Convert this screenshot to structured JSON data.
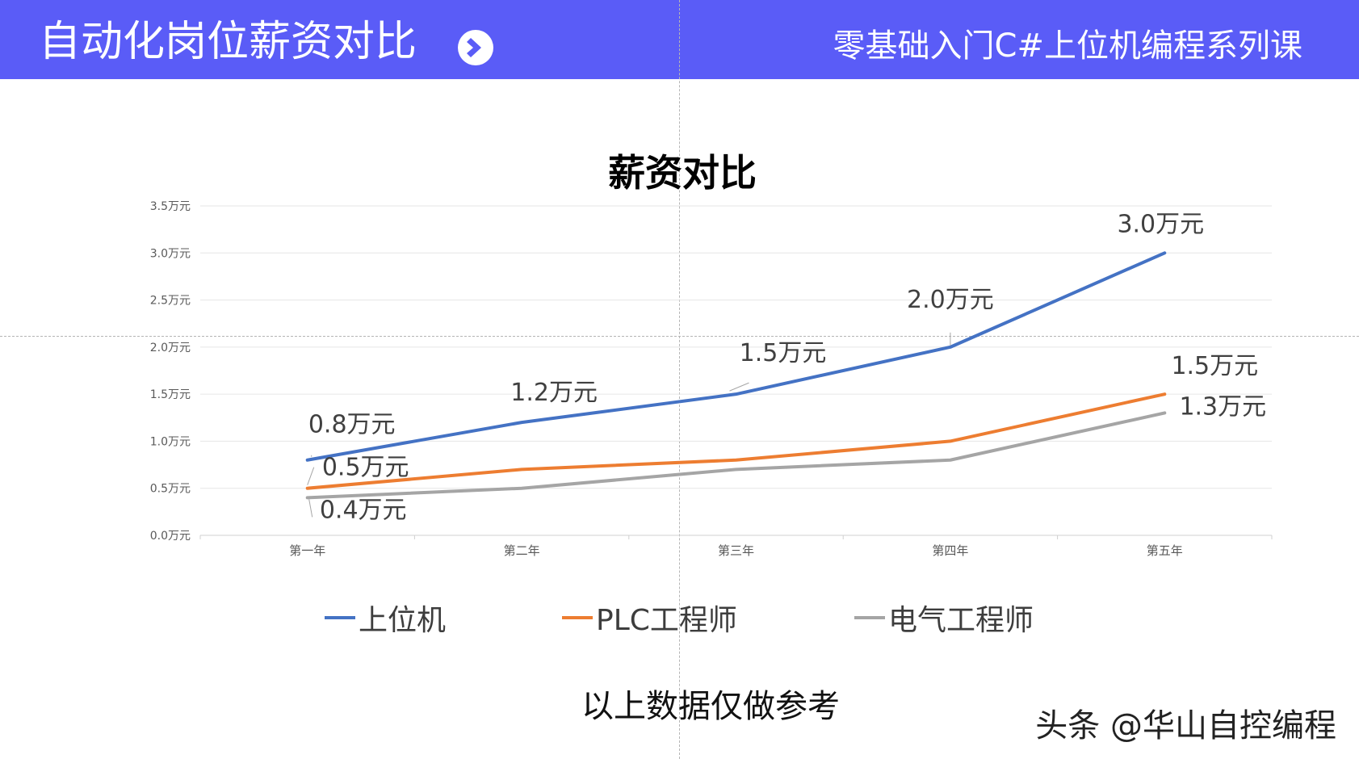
{
  "header": {
    "title": "自动化岗位薪资对比",
    "subtitle": "零基础入门C#上位机编程系列课",
    "arrow_icon": "chevron-right-circle-icon",
    "background_color": "#5a5cf7"
  },
  "chart_data": {
    "type": "line",
    "title": "薪资对比",
    "categories": [
      "第一年",
      "第二年",
      "第三年",
      "第四年",
      "第五年"
    ],
    "ylim": [
      0,
      3.5
    ],
    "yticks": [
      0.0,
      0.5,
      1.0,
      1.5,
      2.0,
      2.5,
      3.0,
      3.5
    ],
    "ytick_labels": [
      "0.0万元",
      "0.5万元",
      "1.0万元",
      "1.5万元",
      "2.0万元",
      "2.5万元",
      "3.0万元",
      "3.5万元"
    ],
    "grid": true,
    "legend_position": "bottom",
    "series": [
      {
        "name": "上位机",
        "color": "#4472c4",
        "values": [
          0.8,
          1.2,
          1.5,
          2.0,
          3.0
        ],
        "data_labels": [
          "0.8万元",
          "1.2万元",
          "1.5万元",
          "2.0万元",
          "3.0万元"
        ]
      },
      {
        "name": "PLC工程师",
        "color": "#ed7d31",
        "values": [
          0.5,
          0.7,
          0.8,
          1.0,
          1.5
        ],
        "data_labels": [
          "0.5万元",
          "",
          "",
          "",
          "1.5万元"
        ]
      },
      {
        "name": "电气工程师",
        "color": "#a5a5a5",
        "values": [
          0.4,
          0.5,
          0.7,
          0.8,
          1.3
        ],
        "data_labels": [
          "0.4万元",
          "",
          "",
          "",
          "1.3万元"
        ]
      }
    ]
  },
  "footnote": "以上数据仅做参考",
  "watermark": "头条 @华山自控编程"
}
